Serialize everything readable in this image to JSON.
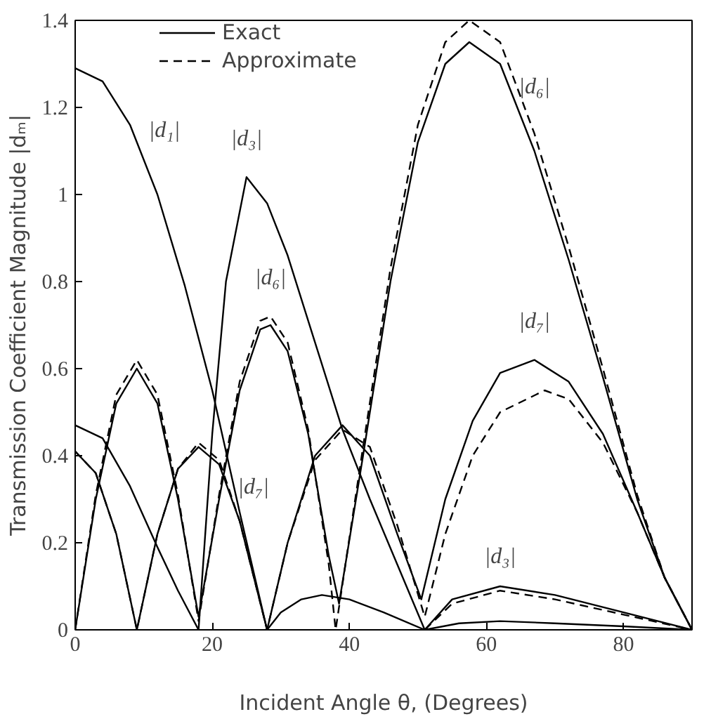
{
  "chart_data": {
    "type": "line",
    "xlabel": "Incident Angle θ, (Degrees)",
    "ylabel": "Transmission Coefficient Magnitude |dₘ|",
    "xlim": [
      0,
      90
    ],
    "ylim": [
      0,
      1.4
    ],
    "xticks": [
      0,
      20,
      40,
      60,
      80
    ],
    "yticks": [
      0,
      0.2,
      0.4,
      0.6,
      0.8,
      1,
      1.2,
      1.4
    ],
    "grid": false,
    "legend": "top left",
    "marker": "none",
    "series": [
      {
        "name": "Exact",
        "color": "#000000",
        "line_style": "solid",
        "x": [
          0,
          4,
          8,
          12,
          16,
          20,
          24,
          28,
          30,
          33,
          36,
          40,
          45,
          51,
          56,
          62,
          70,
          80,
          90
        ],
        "values": [
          1.29,
          1.26,
          1.16,
          1.0,
          0.79,
          0.55,
          0.27,
          0,
          0.04,
          0.07,
          0.08,
          0.07,
          0.04,
          0,
          0.015,
          0.02,
          0.015,
          0.008,
          0
        ]
      },
      {
        "color": "#000000",
        "line_style": "solid",
        "x": [
          0,
          4,
          8,
          12,
          15,
          18,
          20,
          22,
          25,
          28,
          31,
          35,
          39,
          43,
          47,
          51,
          55,
          62,
          70,
          80,
          90
        ],
        "values": [
          0.47,
          0.44,
          0.33,
          0.19,
          0.09,
          0,
          0.45,
          0.8,
          1.04,
          0.98,
          0.86,
          0.66,
          0.46,
          0.3,
          0.15,
          0,
          0.07,
          0.1,
          0.08,
          0.04,
          0
        ]
      },
      {
        "color": "#000000",
        "line_style": "solid",
        "x": [
          0,
          3,
          6,
          9,
          12,
          15,
          18,
          21,
          24,
          27,
          28.5,
          31,
          34,
          37,
          38.5,
          42,
          46,
          50,
          54,
          57.5,
          62,
          67,
          72,
          77,
          82,
          86,
          90
        ],
        "values": [
          0,
          0.3,
          0.52,
          0.6,
          0.52,
          0.3,
          0.03,
          0.3,
          0.55,
          0.69,
          0.7,
          0.64,
          0.45,
          0.17,
          0.06,
          0.4,
          0.8,
          1.12,
          1.3,
          1.35,
          1.3,
          1.1,
          0.85,
          0.58,
          0.3,
          0.12,
          0
        ]
      },
      {
        "color": "#000000",
        "line_style": "solid",
        "x": [
          0,
          3,
          6,
          9,
          12,
          15,
          18,
          21,
          24,
          28,
          31,
          35,
          39,
          43,
          47,
          50.5,
          54,
          58,
          62,
          67,
          72,
          77,
          82,
          86,
          90
        ],
        "values": [
          0.41,
          0.36,
          0.22,
          0,
          0.22,
          0.37,
          0.42,
          0.38,
          0.25,
          0,
          0.2,
          0.4,
          0.47,
          0.4,
          0.22,
          0.07,
          0.3,
          0.48,
          0.59,
          0.62,
          0.57,
          0.45,
          0.27,
          0.12,
          0
        ]
      },
      {
        "name": "Approximate",
        "color": "#000000",
        "line_style": "dashed",
        "x": [
          0,
          3,
          6,
          9,
          12,
          15,
          18,
          21,
          24,
          27,
          28.5,
          31,
          34,
          37,
          38,
          42,
          46,
          50,
          54,
          57.5,
          62,
          67,
          72,
          77,
          82,
          86,
          90
        ],
        "values": [
          0,
          0.31,
          0.54,
          0.62,
          0.54,
          0.31,
          0.02,
          0.31,
          0.57,
          0.71,
          0.72,
          0.66,
          0.46,
          0.15,
          0,
          0.42,
          0.83,
          1.16,
          1.35,
          1.4,
          1.35,
          1.14,
          0.88,
          0.6,
          0.31,
          0.12,
          0
        ]
      },
      {
        "color": "#000000",
        "line_style": "dashed",
        "x": [
          0,
          3,
          6,
          9,
          12,
          15,
          18,
          21,
          24,
          28,
          31,
          35,
          39,
          43,
          47,
          51,
          54,
          58,
          62,
          68.5,
          72,
          77,
          82,
          86,
          90
        ],
        "values": [
          0.41,
          0.36,
          0.22,
          0,
          0.22,
          0.37,
          0.43,
          0.39,
          0.25,
          0,
          0.2,
          0.39,
          0.46,
          0.42,
          0.24,
          0.03,
          0.22,
          0.4,
          0.5,
          0.55,
          0.53,
          0.43,
          0.27,
          0.12,
          0
        ]
      },
      {
        "color": "#000000",
        "line_style": "dashed",
        "x": [
          51,
          55,
          62,
          70,
          80,
          90
        ],
        "values": [
          0,
          0.06,
          0.09,
          0.07,
          0.035,
          0
        ]
      }
    ],
    "annotations": [
      "|d₁|",
      "|d₃|",
      "|d₆|",
      "|d₇|",
      "|d₆|",
      "|d₇|",
      "|d₃|"
    ]
  }
}
